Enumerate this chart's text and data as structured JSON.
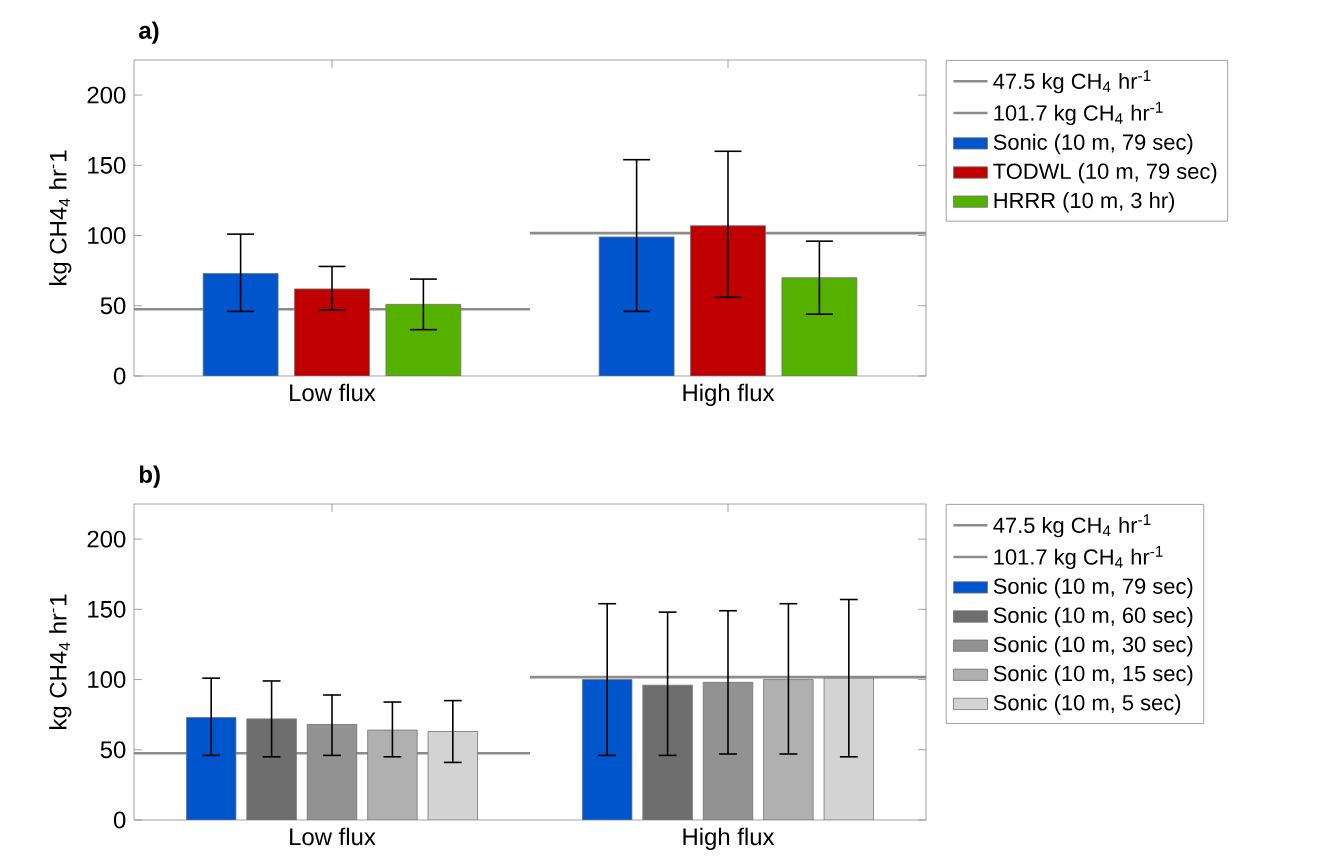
{
  "chart_data": [
    {
      "type": "bar",
      "title": "a)",
      "ylabel": "kg CH4$_{4}$ hr$^{-}$1",
      "categories": [
        "Low flux",
        "High flux"
      ],
      "ylim": [
        0,
        225
      ],
      "yticks": [
        0,
        50,
        100,
        150,
        200
      ],
      "legend": "right",
      "ref_lines": [
        {
          "axis": "y",
          "value": 47.5,
          "label": "47.5 kg CH$_{4}$ hr$^{-1}$",
          "color": "#8c8c8c"
        },
        {
          "axis": "y",
          "value": 101.7,
          "label": "101.7 kg CH$_{4}$ hr$^{-1}$",
          "color": "#8c8c8c"
        }
      ],
      "series": [
        {
          "name": "Sonic (10 m, 79 sec)",
          "color": "#0055cc",
          "values": [
            73,
            99
          ],
          "errors": [
            [
              46,
              101
            ],
            [
              46,
              154
            ]
          ]
        },
        {
          "name": "TODWL (10 m, 79 sec)",
          "color": "#c00000",
          "values": [
            62,
            107
          ],
          "errors": [
            [
              47,
              78
            ],
            [
              56,
              160
            ]
          ]
        },
        {
          "name": "HRRR (10 m, 3 hr)",
          "color": "#55b000",
          "values": [
            51,
            70
          ],
          "errors": [
            [
              33,
              69
            ],
            [
              44,
              96
            ]
          ]
        }
      ]
    },
    {
      "type": "bar",
      "title": "b)",
      "ylabel": "kg CH4$_{4}$ hr$^{-}$1",
      "categories": [
        "Low flux",
        "High flux"
      ],
      "ylim": [
        0,
        225
      ],
      "yticks": [
        0,
        50,
        100,
        150,
        200
      ],
      "legend": "right",
      "ref_lines": [
        {
          "axis": "y",
          "value": 47.5,
          "label": "47.5 kg CH$_{4}$ hr$^{-1}$",
          "color": "#8c8c8c"
        },
        {
          "axis": "y",
          "value": 101.7,
          "label": "101.7 kg CH$_{4}$ hr$^{-1}$",
          "color": "#8c8c8c"
        }
      ],
      "series": [
        {
          "name": "Sonic (10 m, 79 sec)",
          "color": "#0055cc",
          "values": [
            73,
            100
          ],
          "errors": [
            [
              46,
              101
            ],
            [
              46,
              154
            ]
          ]
        },
        {
          "name": "Sonic (10 m, 60 sec)",
          "color": "#6e6e6e",
          "values": [
            72,
            96
          ],
          "errors": [
            [
              45,
              99
            ],
            [
              46,
              148
            ]
          ]
        },
        {
          "name": "Sonic (10 m, 30 sec)",
          "color": "#929292",
          "values": [
            68,
            98
          ],
          "errors": [
            [
              46,
              89
            ],
            [
              47,
              149
            ]
          ]
        },
        {
          "name": "Sonic (10 m, 15 sec)",
          "color": "#b0b0b0",
          "values": [
            64,
            100
          ],
          "errors": [
            [
              45,
              84
            ],
            [
              47,
              154
            ]
          ]
        },
        {
          "name": "Sonic (10 m, 5 sec)",
          "color": "#d3d3d3",
          "values": [
            63,
            101
          ],
          "errors": [
            [
              41,
              85
            ],
            [
              45,
              157
            ]
          ]
        }
      ]
    }
  ]
}
